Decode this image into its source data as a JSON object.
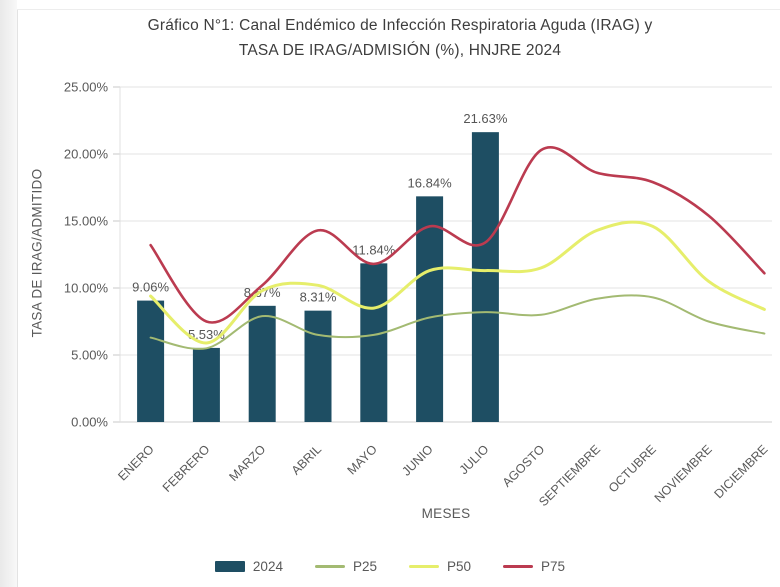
{
  "title": {
    "line1": "Gráfico N°1: Canal Endémico de Infección Respiratoria Aguda (IRAG) y",
    "line2": "TASA DE IRAG/ADMISIÓN (%), HNJRE 2024"
  },
  "y_axis": {
    "title": "TASA DE IRAG/ADMITIDO"
  },
  "x_axis": {
    "title": "MESES"
  },
  "chart_data": {
    "type": "bar+line",
    "title": "Gráfico N°1: Canal Endémico de Infección Respiratoria Aguda (IRAG) y TASA DE IRAG/ADMISIÓN (%), HNJRE 2024",
    "xlabel": "MESES",
    "ylabel": "TASA DE IRAG/ADMITIDO",
    "ylim": [
      0,
      25
    ],
    "grid": true,
    "legend_position": "bottom",
    "categories": [
      "ENERO",
      "FEBRERO",
      "MARZO",
      "ABRIL",
      "MAYO",
      "JUNIO",
      "JULIO",
      "AGOSTO",
      "SEPTIEMBRE",
      "OCTUBRE",
      "NOVIEMBRE",
      "DICIEMBRE"
    ],
    "yticks": [
      {
        "value": 0,
        "label": "0.00%"
      },
      {
        "value": 5,
        "label": "5.00%"
      },
      {
        "value": 10,
        "label": "10.00%"
      },
      {
        "value": 15,
        "label": "15.00%"
      },
      {
        "value": 20,
        "label": "20.00%"
      },
      {
        "value": 25,
        "label": "25.00%"
      }
    ],
    "bar_series": {
      "name": "2024",
      "color": "#1e4e63",
      "values": [
        9.06,
        5.53,
        8.67,
        8.31,
        11.84,
        16.84,
        21.63,
        null,
        null,
        null,
        null,
        null
      ],
      "data_labels": [
        "9.06%",
        "5.53%",
        "8.67%",
        "8.31%",
        "11.84%",
        "16.84%",
        "21.63%",
        null,
        null,
        null,
        null,
        null
      ]
    },
    "line_series": [
      {
        "name": "P25",
        "color": "#a3ba72",
        "width": 2,
        "values": [
          6.3,
          5.5,
          7.9,
          6.5,
          6.5,
          7.8,
          8.2,
          8.0,
          9.2,
          9.3,
          7.5,
          6.6
        ]
      },
      {
        "name": "P50",
        "color": "#e6ee6b",
        "width": 3,
        "values": [
          9.4,
          5.9,
          9.8,
          10.2,
          8.5,
          11.3,
          11.3,
          11.5,
          14.3,
          14.6,
          10.5,
          8.4
        ]
      },
      {
        "name": "P75",
        "color": "#bb3b50",
        "width": 2.6,
        "values": [
          13.2,
          7.5,
          10.2,
          14.3,
          11.8,
          14.6,
          13.4,
          20.3,
          18.6,
          17.9,
          15.4,
          11.1
        ]
      }
    ],
    "colors": {
      "grid": "#e3e3e3",
      "axis": "#cfcfcf",
      "tick_text": "#595959",
      "title_text": "#3d3d3d"
    }
  }
}
